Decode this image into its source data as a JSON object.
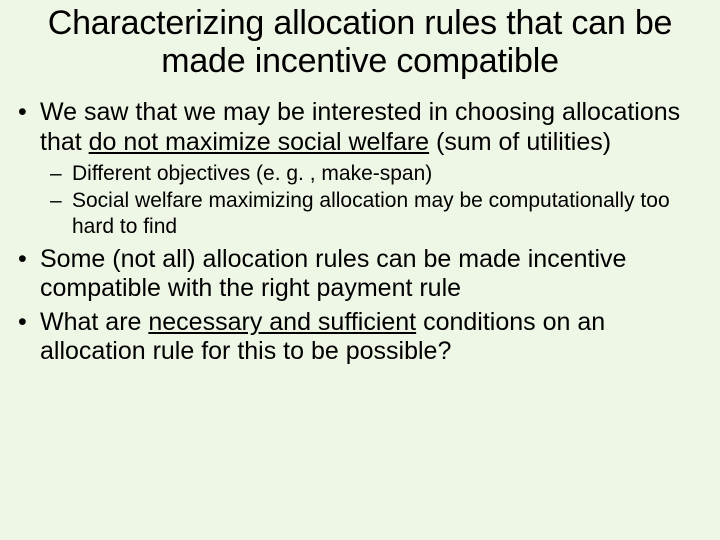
{
  "background_color": "#eef6e6",
  "text_color": "#000000",
  "font_family": "Arial",
  "title": {
    "text": "Characterizing allocation rules that can be made incentive compatible",
    "fontsize": 34,
    "align": "center"
  },
  "bullets": [
    {
      "prefix": "We saw that we may be interested in choosing allocations that ",
      "underlined": "do not maximize social welfare",
      "suffix": " (sum of utilities)",
      "fontsize": 25,
      "sub": [
        {
          "text": "Different objectives (e. g. , make-span)",
          "fontsize": 21
        },
        {
          "text": "Social welfare maximizing allocation may be computationally too hard to find",
          "fontsize": 21
        }
      ]
    },
    {
      "prefix": "Some (not all) allocation rules can be made incentive compatible with the right payment rule",
      "underlined": "",
      "suffix": "",
      "fontsize": 25,
      "sub": []
    },
    {
      "prefix": "What are ",
      "underlined": "necessary and sufficient",
      "suffix": " conditions on an allocation rule for this to be possible?",
      "fontsize": 25,
      "sub": []
    }
  ]
}
